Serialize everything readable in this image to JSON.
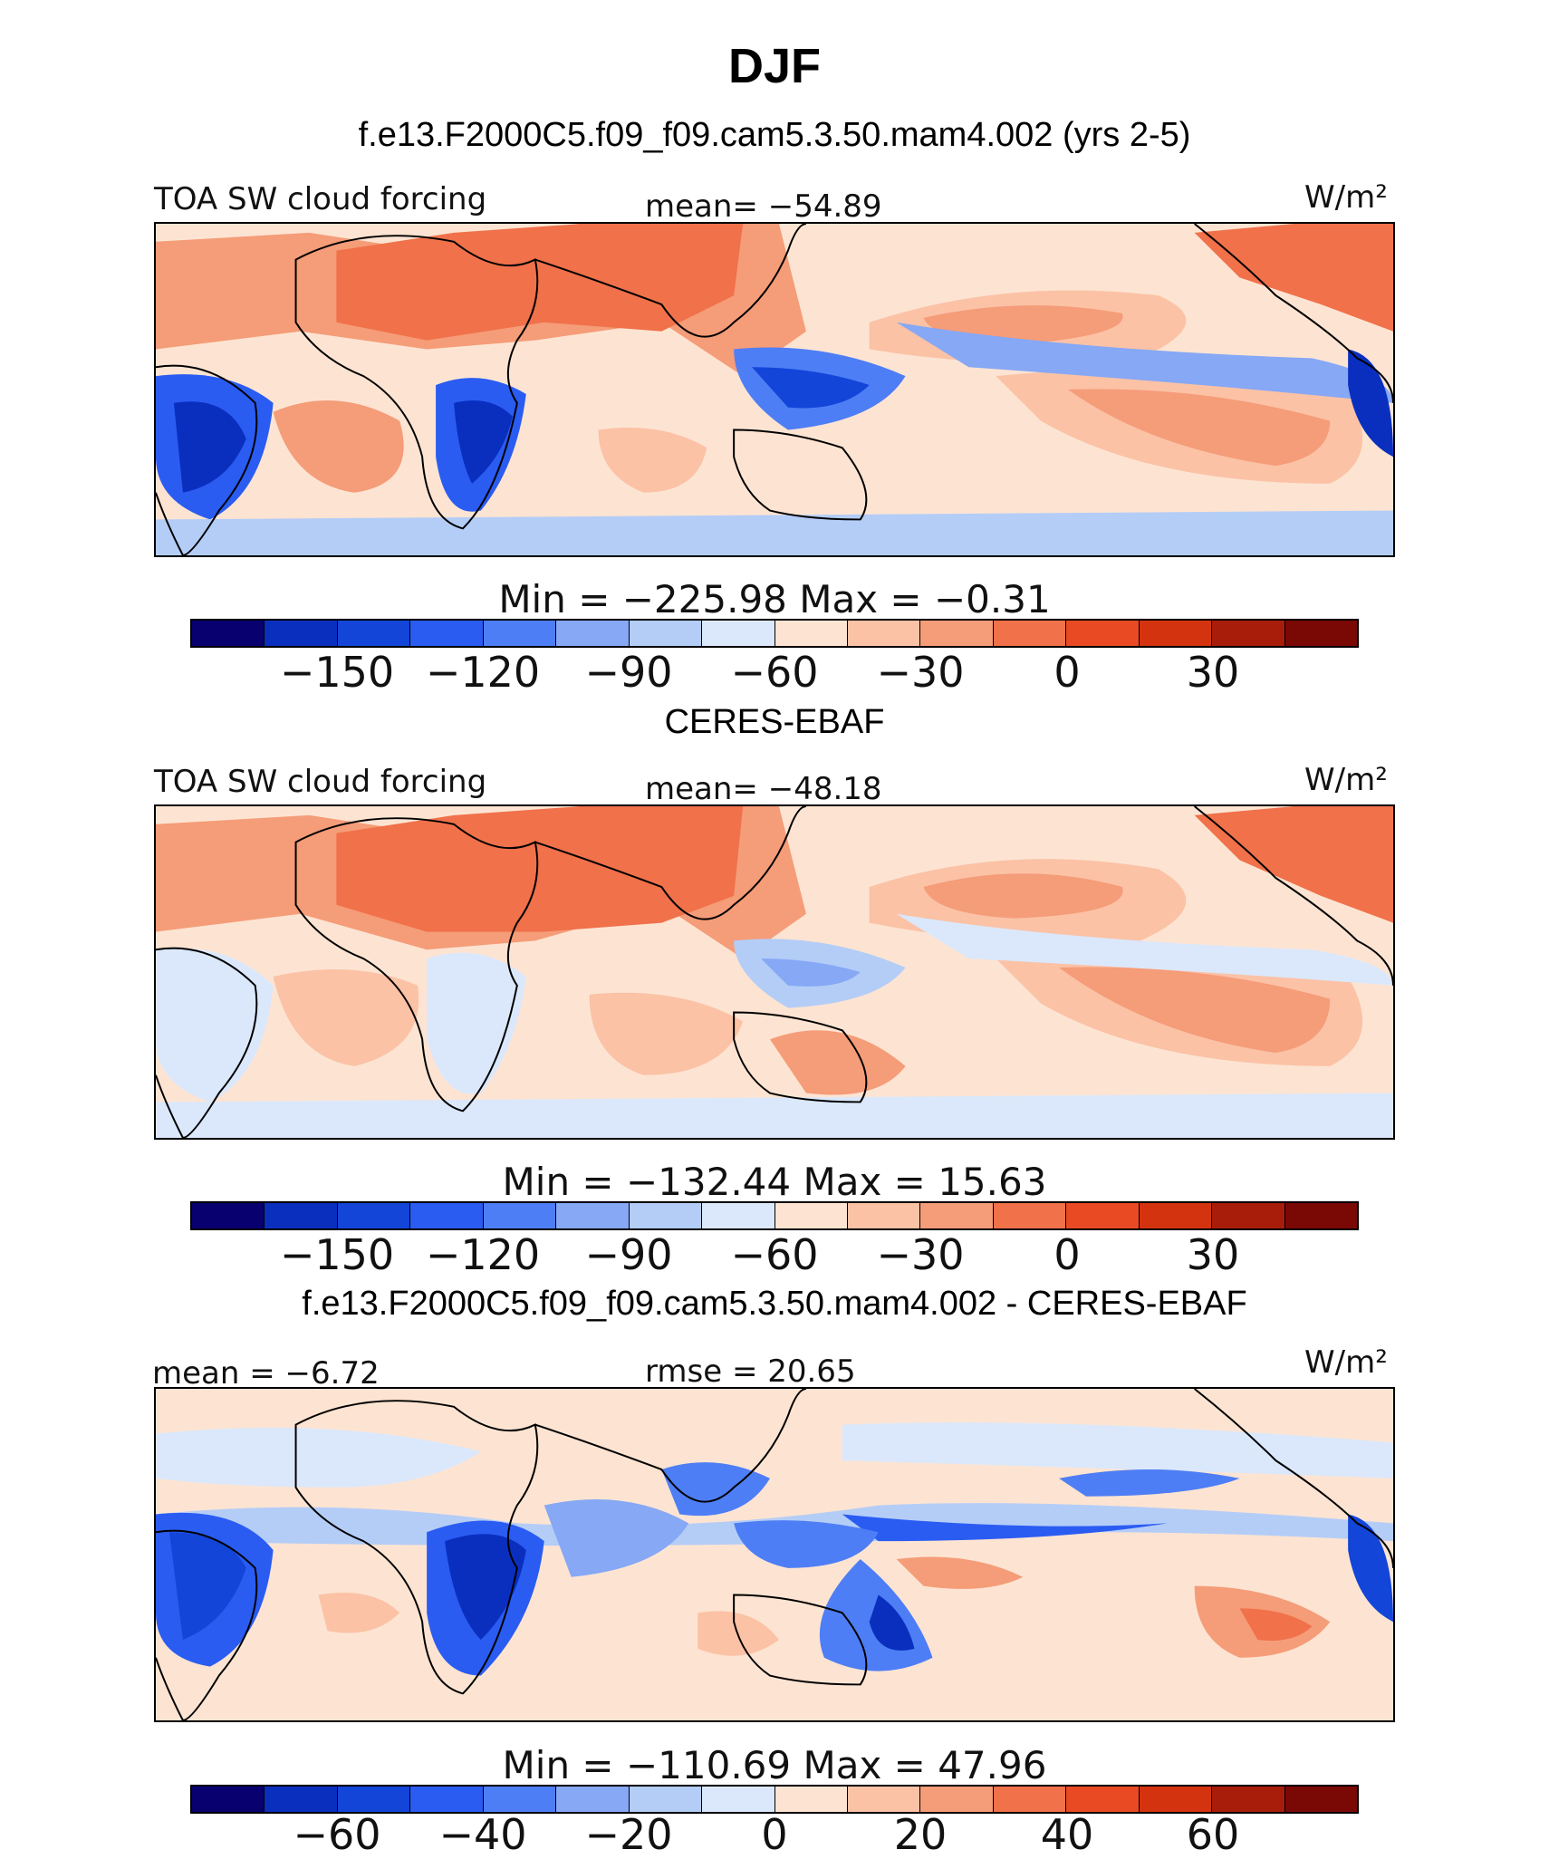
{
  "figure": {
    "title": "DJF",
    "panels": [
      {
        "heading": "f.e13.F2000C5.f09_f09.cam5.3.50.mam4.002 (yrs 2-5)",
        "left_label": "TOA SW cloud forcing",
        "center_label": "mean=  −54.89",
        "units": "W/m²",
        "minmax": "Min  =  −225.98  Max  =    −0.31",
        "colorbar_ticks": [
          "−150",
          "−120",
          "−90",
          "−60",
          "−30",
          "0",
          "30"
        ]
      },
      {
        "heading": "CERES-EBAF",
        "left_label": "TOA SW cloud forcing",
        "center_label": "mean=  −48.18",
        "units": "W/m²",
        "minmax": "Min  =  −132.44  Max  =    15.63",
        "colorbar_ticks": [
          "−150",
          "−120",
          "−90",
          "−60",
          "−30",
          "0",
          "30"
        ]
      },
      {
        "heading": "f.e13.F2000C5.f09_f09.cam5.3.50.mam4.002 - CERES-EBAF",
        "left_label": "mean  =   −6.72",
        "center_label": "rmse  =   20.65",
        "units": "W/m²",
        "minmax": "Min  =  −110.69  Max  =    47.96",
        "colorbar_ticks": [
          "−60",
          "−40",
          "−20",
          "0",
          "20",
          "40",
          "60"
        ]
      }
    ],
    "colorbar_colors": [
      "#08006e",
      "#0a2fbf",
      "#1245d8",
      "#2a5cf2",
      "#4e7ef5",
      "#86a8f5",
      "#b4cdf7",
      "#dbe8fb",
      "#fde4d2",
      "#fbc2a6",
      "#f59c78",
      "#f0714a",
      "#e94a24",
      "#d43310",
      "#a81d0a",
      "#7a0906"
    ]
  }
}
